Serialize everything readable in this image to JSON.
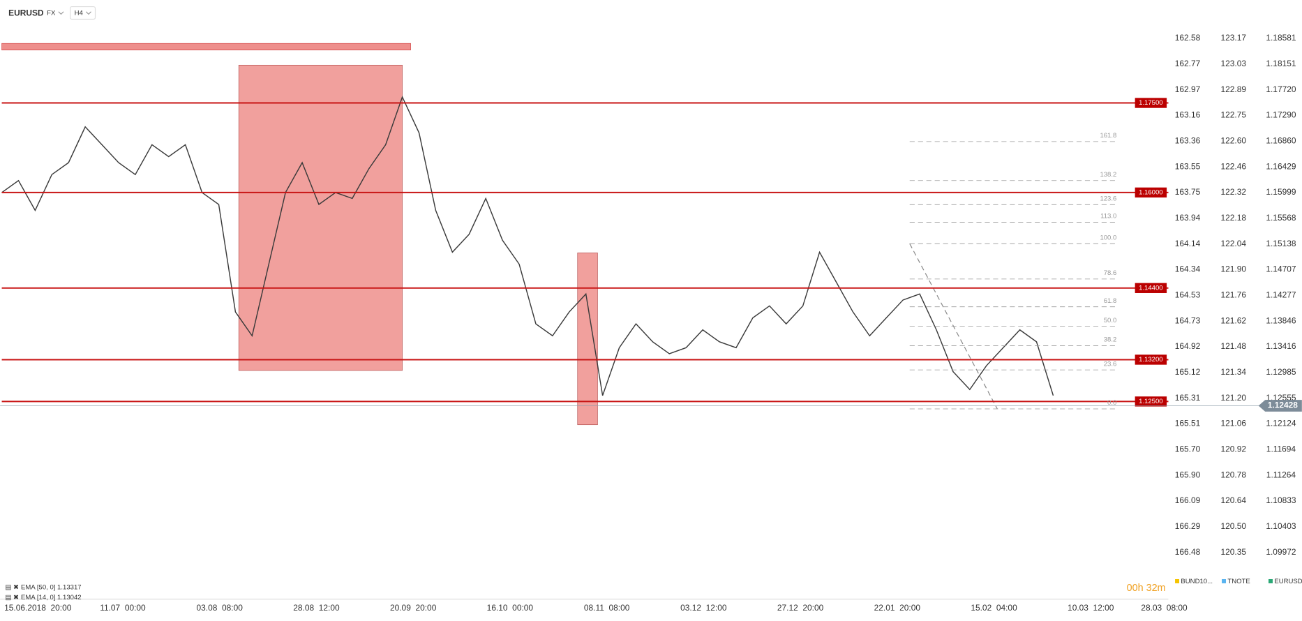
{
  "header": {
    "symbol": "EURUSD",
    "market": "FX",
    "interval": "H4"
  },
  "price_axes": [
    {
      "name": "BUND10...",
      "color": "#f5c400",
      "ticks": [
        162.58,
        162.77,
        162.97,
        163.16,
        163.36,
        163.55,
        163.75,
        163.94,
        164.14,
        164.34,
        164.53,
        164.73,
        164.92,
        165.12,
        165.31,
        165.51,
        {
          "value": 165.7,
          "label": "165.70"
        },
        {
          "value": 165.9,
          "label": "165.90"
        },
        166.09,
        166.29,
        166.48
      ]
    },
    {
      "name": "TNOTE",
      "color": "#5ab4f0",
      "ticks": [
        123.17,
        123.03,
        122.89,
        122.75,
        {
          "value": 122.6,
          "label": "122.60"
        },
        122.46,
        122.32,
        122.18,
        122.04,
        {
          "value": 121.9,
          "label": "121.90"
        },
        121.76,
        121.62,
        121.48,
        121.34,
        {
          "value": 121.2,
          "label": "121.20"
        },
        121.06,
        120.92,
        120.78,
        120.64,
        {
          "value": 120.5,
          "label": "120.50"
        },
        120.35
      ]
    },
    {
      "name": "EURUSD",
      "color": "#2aa876",
      "ticks": [
        1.18581,
        1.18151,
        {
          "value": 1.1772,
          "label": "1.17720"
        },
        {
          "value": 1.1729,
          "label": "1.17290"
        },
        {
          "value": 1.1686,
          "label": "1.16860"
        },
        1.16429,
        1.15999,
        1.15568,
        1.15138,
        1.14707,
        1.14277,
        1.13846,
        1.13416,
        1.12985,
        1.12555,
        1.12124,
        1.11694,
        1.11264,
        1.10833,
        1.10403,
        1.09972
      ]
    }
  ],
  "price": {
    "color": "#3a3a3a",
    "values": [
      1.16,
      1.162,
      1.157,
      1.163,
      1.165,
      1.171,
      1.168,
      1.165,
      1.163,
      1.168,
      1.166,
      1.168,
      1.16,
      1.158,
      1.14,
      1.136,
      1.148,
      1.16,
      1.165,
      1.158,
      1.16,
      1.159,
      1.164,
      1.168,
      1.176,
      1.17,
      1.157,
      1.15,
      1.153,
      1.159,
      1.152,
      1.148,
      1.138,
      1.136,
      1.14,
      1.143,
      1.126,
      1.134,
      1.138,
      1.135,
      1.133,
      1.134,
      1.137,
      1.135,
      1.134,
      1.139,
      1.141,
      1.138,
      1.141,
      1.15,
      1.145,
      1.14,
      1.136,
      1.139,
      1.142,
      1.143,
      1.137,
      1.13,
      1.127,
      1.131,
      1.134,
      1.137,
      1.135,
      1.126
    ]
  },
  "levels": [
    {
      "value": 1.175,
      "label": "1.17500"
    },
    {
      "value": 1.16,
      "label": "1.16000"
    },
    {
      "value": 1.144,
      "label": "1.14400"
    },
    {
      "value": 1.132,
      "label": "1.13200"
    },
    {
      "value": 1.125,
      "label": "1.12500"
    }
  ],
  "current_price": 1.12428,
  "fib_levels": [
    161.8,
    138.2,
    123.6,
    {
      "value": 113,
      "label": "113.0"
    },
    {
      "value": 100,
      "label": "100.0"
    },
    78.6,
    61.8,
    {
      "value": 50,
      "label": "50.0"
    },
    38.2,
    23.6,
    {
      "value": 0,
      "label": "0.0"
    }
  ],
  "time_labels": [
    "15.06.2018  20:00",
    "11.07  00:00",
    "03.08  08:00",
    "28.08  12:00",
    "20.09  20:00",
    "16.10  00:00",
    "08.11  08:00",
    "03.12  12:00",
    "27.12  20:00",
    "22.01  20:00",
    "15.02  04:00",
    "10.03  12:00",
    "28.03  08:00"
  ],
  "indicators": [
    "EMA  [50, 0]  1.13317",
    "EMA  [14, 0]  1.13042"
  ],
  "timer": "00h 32m"
}
